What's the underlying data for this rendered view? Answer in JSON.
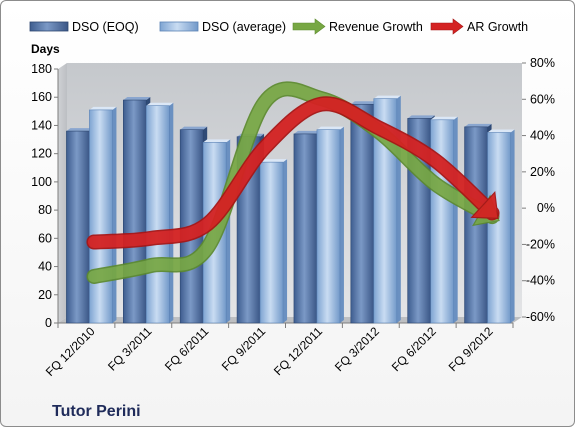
{
  "chart_data": {
    "type": "bar",
    "title": "",
    "company": "Tutor Perini",
    "ylabel": "Days",
    "categories": [
      "FQ 12/2010",
      "FQ 3/2011",
      "FQ 6/2011",
      "FQ 9/2011",
      "FQ 12/2011",
      "FQ 3/2012",
      "FQ 6/2012",
      "FQ 9/2012"
    ],
    "series": [
      {
        "name": "DSO (EOQ)",
        "type": "bar",
        "axis": "left",
        "color": "#4f6fa3",
        "values": [
          136,
          158,
          137,
          132,
          134,
          155,
          145,
          139
        ]
      },
      {
        "name": "DSO (average)",
        "type": "bar",
        "axis": "left",
        "color": "#8fb3de",
        "values": [
          151,
          154,
          128,
          114,
          137,
          159,
          144,
          135
        ]
      },
      {
        "name": "Revenue Growth",
        "type": "line",
        "axis": "right",
        "color": "#77a743",
        "unit": "%",
        "values": [
          -36,
          -30,
          -20,
          60,
          62,
          44,
          15,
          -3
        ]
      },
      {
        "name": "AR Growth",
        "type": "line",
        "axis": "right",
        "color": "#d42222",
        "unit": "%",
        "values": [
          -17,
          -15,
          -7,
          35,
          59,
          46,
          28,
          -1
        ]
      }
    ],
    "ylim_left": [
      0,
      180
    ],
    "yticks_left": [
      0,
      20,
      40,
      60,
      80,
      100,
      120,
      140,
      160,
      180
    ],
    "ylim_right": [
      -60,
      80
    ],
    "yticks_right": [
      "-60%",
      "-40%",
      "-20%",
      "0%",
      "20%",
      "40%",
      "60%",
      "80%"
    ],
    "grid": false,
    "legend_position": "top"
  }
}
